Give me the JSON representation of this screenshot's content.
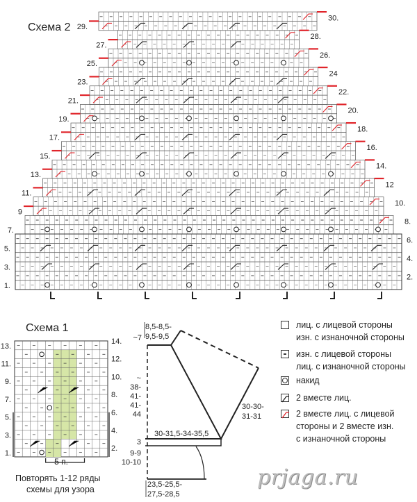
{
  "schema2": {
    "title": "Схема 2",
    "rows_left": [
      "29.",
      "27.",
      "25.",
      "23.",
      "21.",
      "19.",
      "17.",
      "15.",
      "13.",
      "11.",
      "9",
      "7.",
      "5.",
      "3.",
      "1."
    ],
    "rows_right": [
      "30.",
      "28.",
      "26.",
      "24",
      "22.",
      "20.",
      "18.",
      "16.",
      "14.",
      "12",
      "10.",
      "8.",
      "6.",
      "4.",
      "2."
    ]
  },
  "schema1": {
    "title": "Схема 1",
    "rows_left": [
      "13.",
      "11.",
      "9.",
      "7.",
      "5.",
      "3.",
      "1."
    ],
    "rows_right": [
      "14.",
      "12.",
      "10.",
      "8.",
      "6.",
      "4.",
      "2."
    ],
    "repeat_label": "5 п.",
    "note_line1": "Повторять 1-12 ряды",
    "note_line2": "схемы для узора"
  },
  "schematic": {
    "top_width_line1": "8,5-8,5-",
    "top_width_line2": "9,5-9,5",
    "top_height": "~7",
    "body_height": [
      "~",
      "38-",
      "41-",
      "41-",
      "44"
    ],
    "slant": [
      "30-30-",
      "31-31"
    ],
    "width_mid": "30-31,5-34-35,5",
    "band_height": "3",
    "lower_height": [
      "9-9",
      "10-10"
    ],
    "bottom_width_line1": "23,5-25,5-",
    "bottom_width_line2": "27,5-28,5"
  },
  "legend": [
    {
      "icon": "square",
      "line1": "лиц. с лицевой стороны",
      "line2": "изн. с изнаночной стороны"
    },
    {
      "icon": "dash",
      "line1": "изн. с лицевой стороны",
      "line2": "лиц. с изнаночной стороны"
    },
    {
      "icon": "circle",
      "line1": "накид"
    },
    {
      "icon": "slash-black",
      "line1": "2 вместе лиц."
    },
    {
      "icon": "slash-red",
      "line1": "2 вместе лиц. с лицевой",
      "line2": "стороны и 2 вместе изн.",
      "line3": "с изнаночной стороны"
    }
  ],
  "watermark": "prjaga.ru",
  "colors": {
    "red": "#e0242a",
    "green": "#d6e6a7",
    "line": "#555555"
  }
}
